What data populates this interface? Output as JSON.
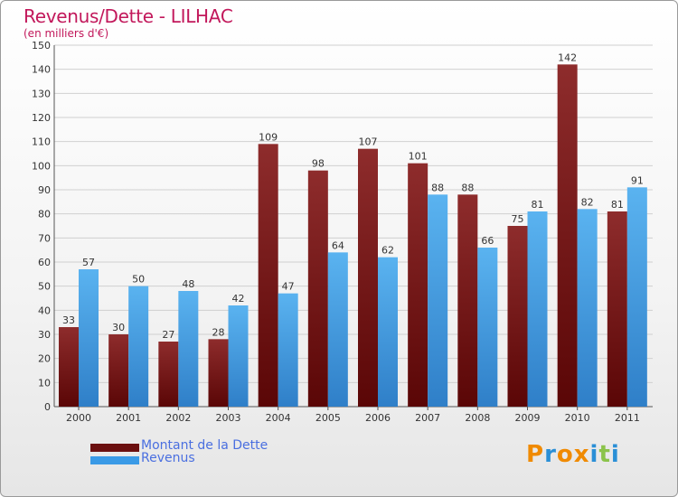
{
  "title": "Revenus/Dette - LILHAC",
  "subtitle": "(en milliers d'€)",
  "chart_data": {
    "type": "bar",
    "categories": [
      "2000",
      "2001",
      "2002",
      "2003",
      "2004",
      "2005",
      "2006",
      "2007",
      "2008",
      "2009",
      "2010",
      "2011"
    ],
    "series": [
      {
        "name": "Montant de la Dette",
        "values": [
          33,
          30,
          27,
          28,
          109,
          98,
          107,
          101,
          88,
          75,
          142,
          81
        ],
        "color": "#7a1a1a"
      },
      {
        "name": "Revenus",
        "values": [
          57,
          50,
          48,
          42,
          47,
          64,
          62,
          88,
          66,
          81,
          82,
          91
        ],
        "color": "#4aa3e8"
      }
    ],
    "ylim": [
      0,
      150
    ],
    "yticks": [
      0,
      10,
      20,
      30,
      40,
      50,
      60,
      70,
      80,
      90,
      100,
      110,
      120,
      130,
      140,
      150
    ],
    "grid": true,
    "legend_position": "bottom-left"
  },
  "legend": {
    "debt_label": "Montant de la Dette",
    "revenue_label": "Revenus"
  },
  "logo": {
    "letters": [
      "P",
      "r",
      "o",
      "x",
      "i",
      "t",
      "i"
    ],
    "colors": [
      "#f08a00",
      "#2a8fd6",
      "#f08a00",
      "#f08a00",
      "#2a8fd6",
      "#8bc34a",
      "#2a8fd6"
    ]
  }
}
